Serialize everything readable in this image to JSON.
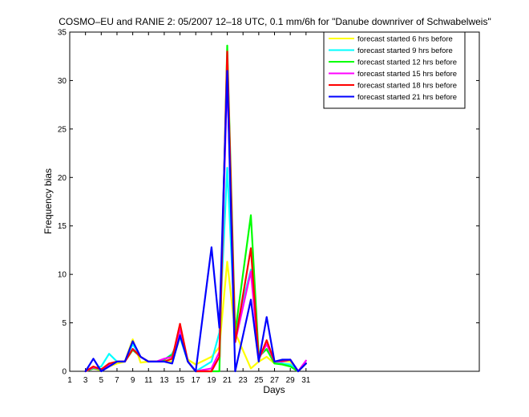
{
  "chart_data": {
    "type": "line",
    "title": "COSMO–EU and RANIE 2: 05/2007 12–18 UTC, 0.1 mm/6h for \"Danube downriver of Schwabelweis\"",
    "xlabel": "Days",
    "ylabel": "Frequency bias",
    "xlim": [
      1,
      53
    ],
    "ylim": [
      0,
      35
    ],
    "xticks": [
      1,
      3,
      5,
      7,
      9,
      11,
      13,
      15,
      17,
      19,
      21,
      23,
      25,
      27,
      29,
      31
    ],
    "yticks": [
      0,
      5,
      10,
      15,
      20,
      25,
      30,
      35
    ],
    "grid": false,
    "legend_position": "top-right",
    "series": [
      {
        "name": "forecast started 6 hrs before",
        "color": "#ffff00",
        "x": [
          3,
          4,
          5,
          6,
          7,
          8,
          9,
          10,
          11,
          12,
          13,
          14,
          15,
          16,
          17,
          19,
          20,
          21,
          22,
          24,
          25,
          26,
          27,
          28,
          29,
          30,
          31
        ],
        "y": [
          0,
          0.3,
          0.1,
          0.5,
          0.8,
          1.0,
          3.3,
          0.9,
          1.0,
          1.0,
          1.0,
          1.0,
          3.5,
          1.2,
          0.7,
          1.5,
          2.5,
          11.3,
          4.0,
          0.3,
          1.0,
          1.5,
          0.8,
          1.0,
          1.0,
          0,
          0.8
        ]
      },
      {
        "name": "forecast started 9 hrs before",
        "color": "#00ffff",
        "x": [
          3,
          4,
          5,
          6,
          7,
          8,
          9,
          10,
          11,
          12,
          13,
          14,
          15,
          16,
          17,
          19,
          20,
          21,
          22,
          24,
          25,
          26,
          27,
          28,
          29,
          30,
          31
        ],
        "y": [
          0,
          0.3,
          0.5,
          1.8,
          1.0,
          1.0,
          2.8,
          1.5,
          1.0,
          1.0,
          1.2,
          1.8,
          3.5,
          1.0,
          0,
          1.0,
          4.0,
          21.0,
          4.0,
          10.5,
          2.0,
          2.2,
          1.0,
          0.8,
          0.7,
          0,
          0.8
        ]
      },
      {
        "name": "forecast started 12 hrs before",
        "color": "#00ff00",
        "x": [
          3,
          4,
          5,
          6,
          7,
          8,
          9,
          10,
          11,
          12,
          13,
          14,
          15,
          16,
          17,
          19,
          20,
          21,
          22,
          24,
          25,
          26,
          27,
          28,
          29,
          30,
          31
        ],
        "y": [
          0,
          0.3,
          0.2,
          0.7,
          1.0,
          1.0,
          2.2,
          1.5,
          1.0,
          1.0,
          1.2,
          1.7,
          3.8,
          1.0,
          0,
          0,
          0,
          33.6,
          4.0,
          16.1,
          1.5,
          2.3,
          0.8,
          0.7,
          0.5,
          0,
          0.8
        ]
      },
      {
        "name": "forecast started 15 hrs before",
        "color": "#ff00ff",
        "x": [
          3,
          4,
          5,
          6,
          7,
          8,
          9,
          10,
          11,
          12,
          13,
          14,
          15,
          16,
          17,
          19,
          20,
          21,
          22,
          24,
          25,
          26,
          27,
          28,
          29,
          30,
          31
        ],
        "y": [
          0,
          0.4,
          0.2,
          0.7,
          1.0,
          1.0,
          2.3,
          1.5,
          1.0,
          1.0,
          1.3,
          1.5,
          4.3,
          1.0,
          0,
          0.3,
          2.0,
          30.5,
          3.0,
          10.3,
          1.3,
          2.8,
          1.0,
          1.0,
          1.2,
          0,
          1.1
        ]
      },
      {
        "name": "forecast started 18 hrs before",
        "color": "#ff0000",
        "x": [
          3,
          4,
          5,
          6,
          7,
          8,
          9,
          10,
          11,
          12,
          13,
          14,
          15,
          16,
          17,
          19,
          20,
          21,
          22,
          24,
          25,
          26,
          27,
          28,
          29,
          30,
          31
        ],
        "y": [
          0,
          0.5,
          0.2,
          0.8,
          1.0,
          1.0,
          2.3,
          1.5,
          1.0,
          1.0,
          1.0,
          1.3,
          4.9,
          1.0,
          0,
          0,
          1.5,
          33.0,
          3.0,
          12.7,
          1.2,
          3.2,
          1.0,
          1.1,
          1.2,
          0,
          0.8
        ]
      },
      {
        "name": "forecast started 21 hrs before",
        "color": "#0000ff",
        "x": [
          3,
          4,
          5,
          6,
          7,
          8,
          9,
          10,
          11,
          12,
          13,
          14,
          15,
          16,
          17,
          19,
          20,
          21,
          22,
          24,
          25,
          26,
          27,
          28,
          29,
          30,
          31
        ],
        "y": [
          0,
          1.3,
          0,
          0.5,
          1.0,
          1.0,
          3.1,
          1.5,
          1.0,
          1.0,
          1.0,
          0.8,
          3.7,
          1.0,
          0,
          12.8,
          4.5,
          31.0,
          0,
          7.4,
          1.0,
          5.6,
          1.0,
          1.2,
          1.2,
          0,
          0.8
        ]
      }
    ]
  }
}
